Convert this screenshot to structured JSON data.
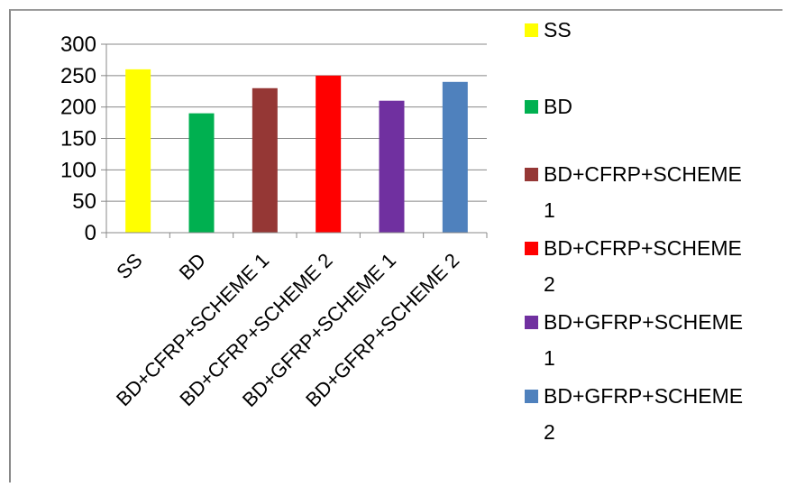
{
  "chart_data": {
    "type": "bar",
    "title": "",
    "xlabel": "",
    "ylabel": "",
    "ylim": [
      0,
      300
    ],
    "yticks": [
      0,
      50,
      100,
      150,
      200,
      250,
      300
    ],
    "grid": true,
    "legend_position": "right",
    "categories": [
      "SS",
      "BD",
      "BD+CFRP+SCHEME 1",
      "BD+CFRP+SCHEME 2",
      "BD+GFRP+SCHEME 1",
      "BD+GFRP+SCHEME 2"
    ],
    "values": [
      260,
      190,
      230,
      250,
      210,
      240
    ],
    "colors": [
      "#ffff00",
      "#00b050",
      "#953735",
      "#ff0000",
      "#7030a0",
      "#4f81bd"
    ],
    "legend": [
      {
        "line1": "SS",
        "line2": "",
        "color": "#ffff00"
      },
      {
        "line1": "BD",
        "line2": "",
        "color": "#00b050"
      },
      {
        "line1": "BD+CFRP+SCHEME",
        "line2": "1",
        "color": "#953735"
      },
      {
        "line1": "BD+CFRP+SCHEME",
        "line2": "2",
        "color": "#ff0000"
      },
      {
        "line1": "BD+GFRP+SCHEME",
        "line2": "1",
        "color": "#7030a0"
      },
      {
        "line1": "BD+GFRP+SCHEME",
        "line2": "2",
        "color": "#4f81bd"
      }
    ]
  }
}
